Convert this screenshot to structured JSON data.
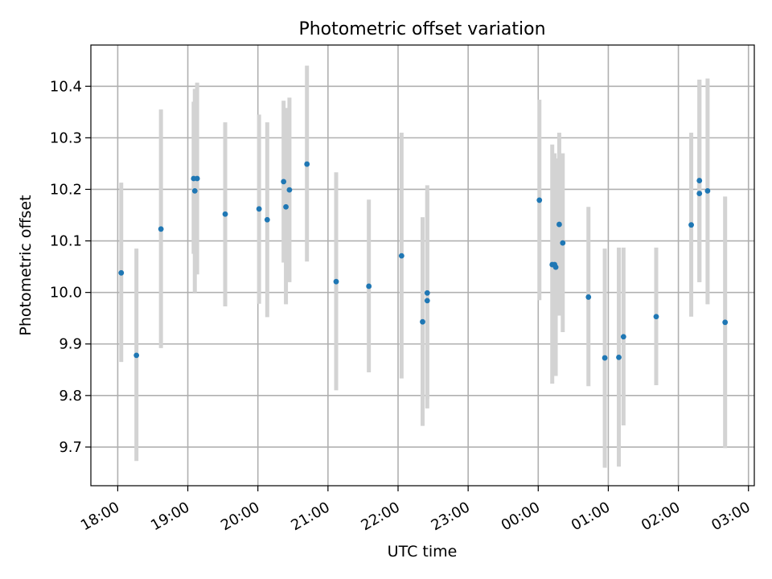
{
  "chart_data": {
    "type": "scatter",
    "title": "Photometric offset variation",
    "xlabel": "UTC time",
    "ylabel": "Photometric offset",
    "x_axis": "time",
    "x_ticks": [
      {
        "t": "2024-01-01T18:00",
        "label": "18:00"
      },
      {
        "t": "2024-01-01T19:00",
        "label": "19:00"
      },
      {
        "t": "2024-01-01T20:00",
        "label": "20:00"
      },
      {
        "t": "2024-01-01T21:00",
        "label": "21:00"
      },
      {
        "t": "2024-01-01T22:00",
        "label": "22:00"
      },
      {
        "t": "2024-01-01T23:00",
        "label": "23:00"
      },
      {
        "t": "2024-01-02T00:00",
        "label": "00:00"
      },
      {
        "t": "2024-01-02T01:00",
        "label": "01:00"
      },
      {
        "t": "2024-01-02T02:00",
        "label": "02:00"
      },
      {
        "t": "2024-01-02T03:00",
        "label": "03:00"
      }
    ],
    "y_ticks": [
      9.7,
      9.8,
      9.9,
      10.0,
      10.1,
      10.2,
      10.3,
      10.4
    ],
    "y_tick_labels": [
      "9.7",
      "9.8",
      "9.9",
      "10.0",
      "10.1",
      "10.2",
      "10.3",
      "10.4"
    ],
    "xlim": [
      "2024-01-01T17:37",
      "2024-01-02T03:05"
    ],
    "ylim": [
      9.625,
      10.48
    ],
    "grid": true,
    "marker_color": "#1f77b4",
    "errorbar_color": "#d3d3d3",
    "points": [
      {
        "t": "2024-01-01T18:03",
        "y": 10.038,
        "ylow": 9.865,
        "yhigh": 10.213
      },
      {
        "t": "2024-01-01T18:16",
        "y": 9.878,
        "ylow": 9.673,
        "yhigh": 10.085
      },
      {
        "t": "2024-01-01T18:37",
        "y": 10.123,
        "ylow": 9.892,
        "yhigh": 10.355
      },
      {
        "t": "2024-01-01T19:05",
        "y": 10.221,
        "ylow": 10.075,
        "yhigh": 10.37
      },
      {
        "t": "2024-01-01T19:06",
        "y": 10.197,
        "ylow": 10.0,
        "yhigh": 10.395
      },
      {
        "t": "2024-01-01T19:08",
        "y": 10.221,
        "ylow": 10.035,
        "yhigh": 10.407
      },
      {
        "t": "2024-01-01T19:32",
        "y": 10.152,
        "ylow": 9.973,
        "yhigh": 10.33
      },
      {
        "t": "2024-01-01T20:01",
        "y": 10.162,
        "ylow": 9.978,
        "yhigh": 10.345
      },
      {
        "t": "2024-01-01T20:08",
        "y": 10.141,
        "ylow": 9.952,
        "yhigh": 10.33
      },
      {
        "t": "2024-01-01T20:22",
        "y": 10.215,
        "ylow": 10.058,
        "yhigh": 10.372
      },
      {
        "t": "2024-01-01T20:24",
        "y": 10.166,
        "ylow": 9.977,
        "yhigh": 10.358
      },
      {
        "t": "2024-01-01T20:27",
        "y": 10.199,
        "ylow": 10.02,
        "yhigh": 10.378
      },
      {
        "t": "2024-01-01T20:42",
        "y": 10.249,
        "ylow": 10.06,
        "yhigh": 10.44
      },
      {
        "t": "2024-01-01T21:07",
        "y": 10.021,
        "ylow": 9.81,
        "yhigh": 10.233
      },
      {
        "t": "2024-01-01T21:35",
        "y": 10.012,
        "ylow": 9.845,
        "yhigh": 10.18
      },
      {
        "t": "2024-01-01T22:03",
        "y": 10.071,
        "ylow": 9.833,
        "yhigh": 10.31
      },
      {
        "t": "2024-01-01T22:21",
        "y": 9.943,
        "ylow": 9.741,
        "yhigh": 10.146
      },
      {
        "t": "2024-01-01T22:25",
        "y": 9.999,
        "ylow": 9.793,
        "yhigh": 10.208
      },
      {
        "t": "2024-01-01T22:25",
        "y": 9.984,
        "ylow": 9.775,
        "yhigh": 10.195
      },
      {
        "t": "2024-01-02T00:01",
        "y": 10.179,
        "ylow": 9.985,
        "yhigh": 10.374
      },
      {
        "t": "2024-01-02T00:12",
        "y": 10.054,
        "ylow": 9.823,
        "yhigh": 10.287
      },
      {
        "t": "2024-01-02T00:14",
        "y": 10.054,
        "ylow": 9.838,
        "yhigh": 10.27
      },
      {
        "t": "2024-01-02T00:15",
        "y": 10.049,
        "ylow": 9.838,
        "yhigh": 10.26
      },
      {
        "t": "2024-01-02T00:18",
        "y": 10.132,
        "ylow": 9.955,
        "yhigh": 10.31
      },
      {
        "t": "2024-01-02T00:21",
        "y": 10.096,
        "ylow": 9.923,
        "yhigh": 10.27
      },
      {
        "t": "2024-01-02T00:43",
        "y": 9.991,
        "ylow": 9.818,
        "yhigh": 10.166
      },
      {
        "t": "2024-01-02T00:57",
        "y": 9.873,
        "ylow": 9.66,
        "yhigh": 10.085
      },
      {
        "t": "2024-01-02T01:09",
        "y": 9.874,
        "ylow": 9.662,
        "yhigh": 10.087
      },
      {
        "t": "2024-01-02T01:13",
        "y": 9.914,
        "ylow": 9.742,
        "yhigh": 10.087
      },
      {
        "t": "2024-01-02T01:41",
        "y": 9.953,
        "ylow": 9.82,
        "yhigh": 10.087
      },
      {
        "t": "2024-01-02T02:11",
        "y": 10.131,
        "ylow": 9.953,
        "yhigh": 10.31
      },
      {
        "t": "2024-01-02T02:18",
        "y": 10.217,
        "ylow": 10.02,
        "yhigh": 10.413
      },
      {
        "t": "2024-01-02T02:18",
        "y": 10.192,
        "ylow": 10.02,
        "yhigh": 10.413
      },
      {
        "t": "2024-01-02T02:25",
        "y": 10.197,
        "ylow": 9.977,
        "yhigh": 10.415
      },
      {
        "t": "2024-01-02T02:40",
        "y": 9.942,
        "ylow": 9.698,
        "yhigh": 10.186
      }
    ]
  }
}
